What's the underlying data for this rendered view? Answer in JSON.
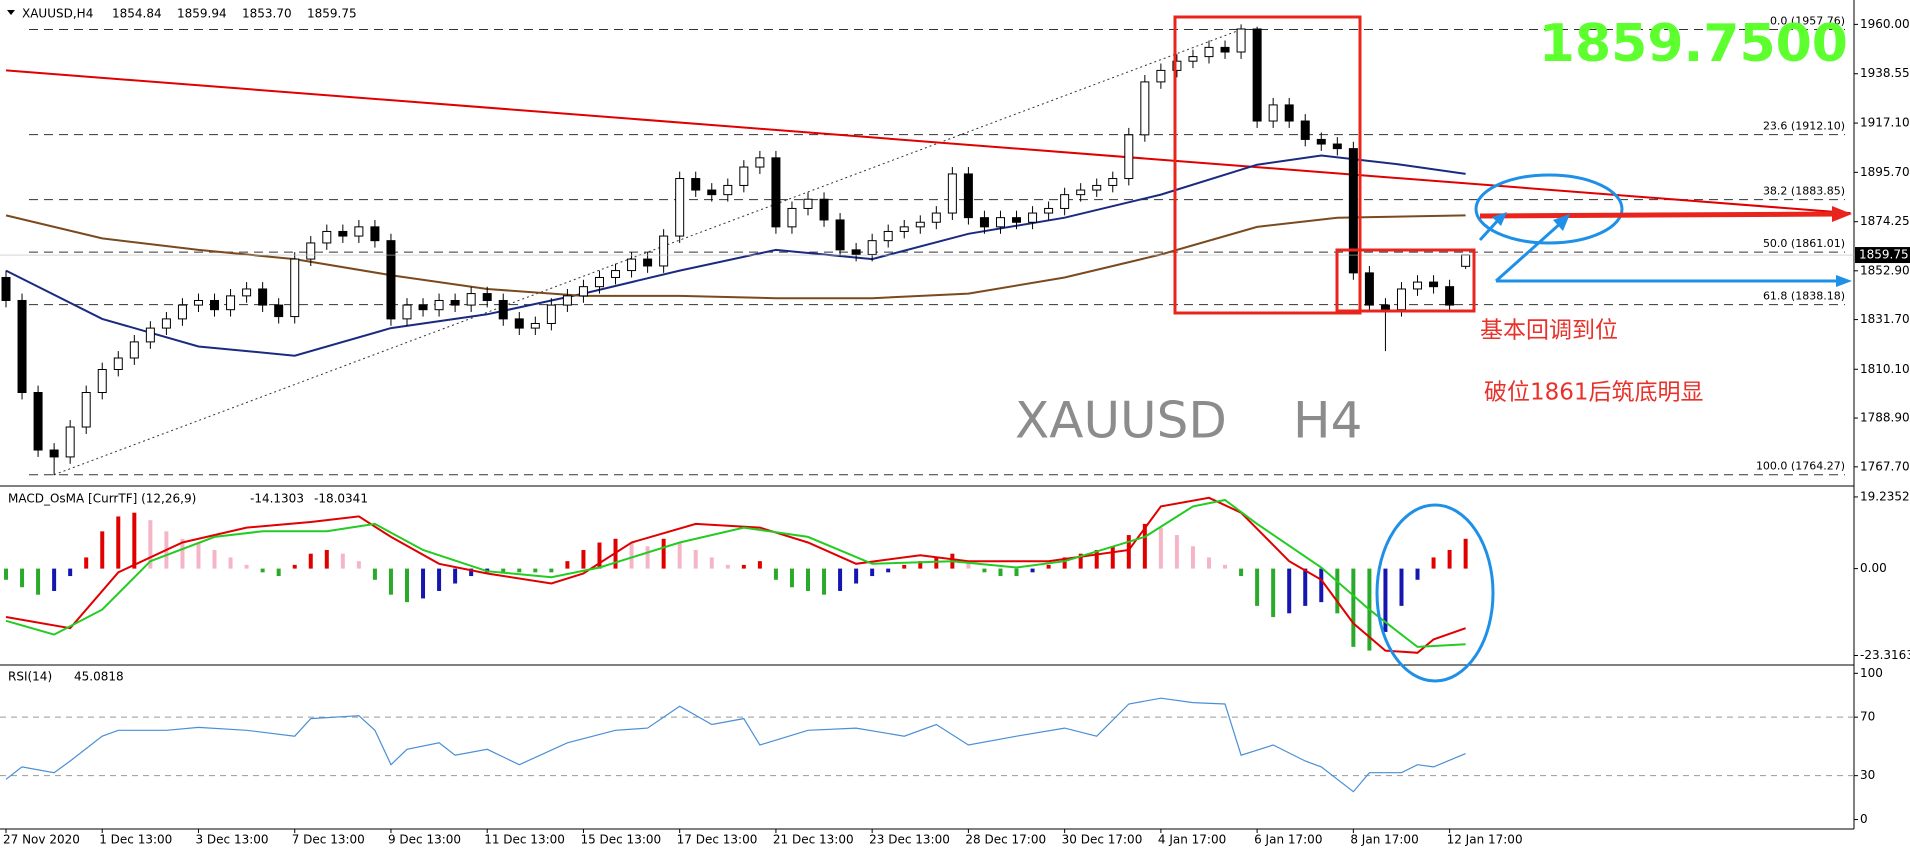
{
  "chart_data": [
    {
      "type": "candlestick",
      "title": "XAUUSD,H4",
      "last_bar": {
        "values": [
          1854.84,
          1859.94,
          1853.7,
          1859.75
        ],
        "value_labels": [
          "1854.84",
          "1859.94",
          "1853.70",
          "1859.75"
        ]
      },
      "big_price": "1859.7500",
      "watermark": [
        "XAUUSD",
        "H4"
      ],
      "annotations": [
        "基本回调到位",
        "破位1861后筑底明显"
      ],
      "categories": [
        "27 Nov 2020",
        null,
        null,
        null,
        null,
        null,
        "1 Dec 13:00",
        null,
        null,
        null,
        null,
        null,
        "3 Dec 13:00",
        null,
        null,
        null,
        null,
        null,
        "7 Dec 13:00",
        null,
        null,
        null,
        null,
        null,
        "9 Dec 13:00",
        null,
        null,
        null,
        null,
        null,
        "11 Dec 13:00",
        null,
        null,
        null,
        null,
        null,
        "15 Dec 13:00",
        null,
        null,
        null,
        null,
        null,
        "17 Dec 13:00",
        null,
        null,
        null,
        null,
        null,
        "21 Dec 13:00",
        null,
        null,
        null,
        null,
        null,
        "23 Dec 13:00",
        null,
        null,
        null,
        null,
        null,
        "28 Dec 17:00",
        null,
        null,
        null,
        null,
        null,
        "30 Dec 17:00",
        null,
        null,
        null,
        null,
        null,
        "4 Jan 17:00",
        null,
        null,
        null,
        null,
        null,
        "6 Jan 17:00",
        null,
        null,
        null,
        null,
        null,
        "8 Jan 17:00",
        null,
        null,
        null,
        null,
        null,
        "12 Jan 17:00",
        null
      ],
      "open": [
        1850,
        1840,
        1800,
        1775,
        1772,
        1785,
        1800,
        1810,
        1815,
        1822,
        1828,
        1832,
        1838,
        1840,
        1836,
        1842,
        1845,
        1838,
        1833,
        1858,
        1865,
        1870,
        1868,
        1872,
        1866,
        1832,
        1838,
        1836,
        1840,
        1838,
        1843,
        1840,
        1832,
        1828,
        1830,
        1838,
        1842,
        1846,
        1850,
        1853,
        1858,
        1855,
        1868,
        1893,
        1888,
        1886,
        1890,
        1898,
        1902,
        1872,
        1880,
        1884,
        1875,
        1862,
        1860,
        1866,
        1870,
        1872,
        1874,
        1878,
        1895,
        1876,
        1872,
        1876,
        1874,
        1878,
        1880,
        1886,
        1888,
        1890,
        1893,
        1912,
        1935,
        1940,
        1944,
        1946,
        1950,
        1948,
        1958,
        1918,
        1925,
        1918,
        1910,
        1908,
        1906,
        1852,
        1838,
        1836,
        1845,
        1848,
        1846,
        1854.84
      ],
      "high": [
        1853,
        1843,
        1803,
        1778,
        1788,
        1803,
        1813,
        1818,
        1825,
        1831,
        1835,
        1841,
        1843,
        1843,
        1845,
        1848,
        1848,
        1841,
        1861,
        1868,
        1873,
        1873,
        1875,
        1875,
        1869,
        1841,
        1841,
        1843,
        1843,
        1846,
        1846,
        1843,
        1835,
        1833,
        1841,
        1845,
        1849,
        1853,
        1856,
        1861,
        1861,
        1871,
        1896,
        1896,
        1891,
        1893,
        1901,
        1905,
        1905,
        1883,
        1887,
        1887,
        1878,
        1865,
        1869,
        1873,
        1875,
        1877,
        1881,
        1898,
        1898,
        1879,
        1879,
        1879,
        1881,
        1883,
        1889,
        1891,
        1893,
        1896,
        1915,
        1938,
        1943,
        1947,
        1949,
        1953,
        1953,
        1960,
        1959,
        1928,
        1928,
        1921,
        1913,
        1911,
        1909,
        1855,
        1841,
        1848,
        1851,
        1851,
        1849,
        1859.94
      ],
      "low": [
        1837,
        1797,
        1772,
        1764,
        1769,
        1782,
        1797,
        1807,
        1812,
        1819,
        1825,
        1829,
        1835,
        1833,
        1833,
        1839,
        1835,
        1830,
        1830,
        1855,
        1862,
        1865,
        1865,
        1863,
        1829,
        1829,
        1833,
        1833,
        1835,
        1835,
        1837,
        1829,
        1825,
        1825,
        1827,
        1835,
        1839,
        1843,
        1847,
        1850,
        1852,
        1852,
        1865,
        1885,
        1883,
        1883,
        1887,
        1895,
        1869,
        1869,
        1877,
        1872,
        1859,
        1857,
        1857,
        1863,
        1867,
        1869,
        1871,
        1875,
        1873,
        1869,
        1869,
        1871,
        1871,
        1875,
        1877,
        1883,
        1885,
        1887,
        1890,
        1909,
        1932,
        1937,
        1941,
        1943,
        1945,
        1945,
        1915,
        1915,
        1915,
        1907,
        1905,
        1903,
        1849,
        1835,
        1818,
        1833,
        1842,
        1843,
        1835,
        1853.7
      ],
      "close": [
        1840,
        1800,
        1775,
        1772,
        1785,
        1800,
        1810,
        1815,
        1822,
        1828,
        1832,
        1838,
        1840,
        1836,
        1842,
        1845,
        1838,
        1833,
        1858,
        1865,
        1870,
        1868,
        1872,
        1866,
        1832,
        1838,
        1836,
        1840,
        1838,
        1843,
        1840,
        1832,
        1828,
        1830,
        1838,
        1842,
        1846,
        1850,
        1853,
        1858,
        1855,
        1868,
        1893,
        1888,
        1886,
        1890,
        1898,
        1902,
        1872,
        1880,
        1884,
        1875,
        1862,
        1860,
        1866,
        1870,
        1872,
        1874,
        1878,
        1895,
        1876,
        1872,
        1876,
        1874,
        1878,
        1880,
        1886,
        1888,
        1890,
        1893,
        1912,
        1935,
        1940,
        1944,
        1946,
        1950,
        1948,
        1958,
        1918,
        1925,
        1918,
        1910,
        1908,
        1906,
        1852,
        1838,
        1836,
        1845,
        1848,
        1846,
        1838,
        1859.75
      ],
      "colors": {
        "up": "#ffffff",
        "down": "#000000",
        "outline": "#000000"
      },
      "moving_averages": [
        {
          "color": "#1a2a80",
          "x": [
            0,
            6,
            12,
            18,
            24,
            30,
            36,
            42,
            48,
            54,
            60,
            66,
            72,
            78,
            82,
            87,
            91
          ],
          "values": [
            1853,
            1832,
            1820,
            1816,
            1828,
            1834,
            1843,
            1853,
            1862,
            1858,
            1869,
            1876,
            1886,
            1899,
            1903,
            1899,
            1895
          ]
        },
        {
          "color": "#7a4a1e",
          "x": [
            0,
            6,
            12,
            18,
            24,
            30,
            36,
            42,
            48,
            54,
            60,
            66,
            72,
            78,
            83,
            91
          ],
          "values": [
            1877,
            1867,
            1862,
            1858,
            1851,
            1845,
            1842,
            1842,
            1841,
            1841,
            1843,
            1850,
            1860,
            1872,
            1876,
            1877
          ]
        }
      ],
      "trendline": {
        "color": "#e00000",
        "x": [
          0,
          115
        ],
        "values": [
          1940,
          1878
        ]
      },
      "fib_levels": [
        {
          "value": 1957.76,
          "label": "0.0 (1957.76)"
        },
        {
          "value": 1912.1,
          "label": "23.6 (1912.10)"
        },
        {
          "value": 1883.85,
          "label": "38.2 (1883.85)"
        },
        {
          "value": 1861.01,
          "label": "50.0 (1861.01)"
        },
        {
          "value": 1838.18,
          "label": "61.8 (1838.18)"
        },
        {
          "value": 1764.27,
          "label": "100.0 (1764.27)"
        }
      ],
      "ylim": [
        1759.8,
        1970.6
      ],
      "yticks": [
        {
          "value": 1960,
          "label": "1960.00"
        },
        {
          "value": 1938.55,
          "label": "1938.55"
        },
        {
          "value": 1917.1,
          "label": "1917.10"
        },
        {
          "value": 1895.7,
          "label": "1895.70"
        },
        {
          "value": 1874.25,
          "label": "1874.25"
        },
        {
          "value": 1852.9,
          "label": "1852.90"
        },
        {
          "value": 1831.7,
          "label": "1831.70"
        },
        {
          "value": 1810.1,
          "label": "1810.10"
        },
        {
          "value": 1788.9,
          "label": "1788.90"
        },
        {
          "value": 1767.7,
          "label": "1767.70"
        }
      ]
    },
    {
      "type": "macd",
      "title": "MACD_OsMA [CurrTF] (12,26,9)",
      "readouts": [
        -14.1303,
        -18.0341
      ],
      "histogram": [
        -3,
        -5,
        -7,
        -6,
        -2,
        3,
        10,
        14,
        15,
        13,
        10,
        8,
        7,
        5,
        3,
        1,
        -1,
        -2,
        1,
        4,
        5,
        4,
        2,
        -3,
        -7,
        -9,
        -8,
        -6,
        -4,
        -2,
        -1,
        -1,
        -1,
        -1,
        -1,
        2,
        5,
        7,
        8,
        7,
        6,
        8,
        7,
        5,
        3,
        1,
        1,
        2,
        -3,
        -5,
        -6,
        -7,
        -6,
        -4,
        -2,
        -1,
        1,
        2,
        3,
        4,
        2,
        -1,
        -2,
        -2,
        -1,
        1,
        3,
        4,
        5,
        6,
        9,
        12,
        11,
        9,
        6,
        3,
        1,
        -2,
        -10,
        -13,
        -12,
        -10,
        -9,
        -12,
        -21,
        -22,
        -17,
        -10,
        -3,
        3,
        5,
        8
      ],
      "colors": {
        "rising_positive": "#e00000",
        "falling_positive": "#f4b6c6",
        "falling_negative": "#2aaa2a",
        "rising_negative": "#1515b0"
      },
      "lines": [
        {
          "color": "#e00000",
          "x": [
            0,
            4,
            7,
            11,
            15,
            19,
            22,
            24,
            27,
            30,
            34,
            36,
            39,
            43,
            47,
            50,
            53,
            57,
            60,
            65,
            70,
            72,
            75,
            77,
            80,
            82,
            84,
            86,
            88,
            89,
            91
          ],
          "values": [
            -13,
            -16,
            -1,
            7,
            11,
            12.5,
            14,
            8.5,
            1.3,
            -1.3,
            -4,
            -1.3,
            7,
            12,
            11,
            7,
            1.3,
            3.6,
            2,
            2,
            5,
            16.7,
            19,
            15,
            2,
            -3,
            -14.7,
            -22,
            -22.6,
            -19,
            -16
          ]
        },
        {
          "color": "#22cc22",
          "x": [
            0,
            3,
            6,
            9,
            13,
            16,
            20,
            23,
            26,
            30,
            34,
            37,
            42,
            46,
            50,
            54,
            59,
            63,
            66,
            71,
            74,
            76,
            78,
            82,
            85,
            87,
            88,
            91
          ],
          "values": [
            -14,
            -17.7,
            -11,
            2,
            8.5,
            10,
            10,
            12,
            5,
            -0.7,
            -2.3,
            0.3,
            7,
            11,
            8.5,
            1.3,
            2,
            0.3,
            2,
            8.5,
            16.7,
            18.4,
            12,
            0.3,
            -11,
            -17.7,
            -21,
            -20.3
          ]
        }
      ],
      "ylim": [
        -25.6,
        21.9
      ],
      "yticks": [
        19.2352,
        {
          "value": 0,
          "label": "0.00"
        },
        -23.3163
      ]
    },
    {
      "type": "line",
      "title": "RSI(14)",
      "readout": 45.0818,
      "color": "#4a8fd6",
      "x": [
        0,
        1,
        3,
        4,
        6,
        7,
        10,
        12,
        15,
        18,
        19,
        22,
        23,
        24,
        25,
        27,
        28,
        30,
        32,
        35,
        38,
        40,
        42,
        44,
        46,
        47,
        50,
        53,
        56,
        58,
        60,
        63,
        66,
        68,
        70,
        72,
        74,
        76,
        77,
        79,
        81,
        82,
        84,
        85,
        87,
        88,
        89,
        91
      ],
      "values": [
        27.5,
        36,
        32,
        40,
        57,
        61,
        61,
        63,
        61,
        57,
        69,
        71,
        61,
        37.5,
        48,
        52.5,
        44,
        48,
        37.5,
        52.5,
        61,
        62.5,
        77.5,
        65,
        69,
        51,
        61,
        62.5,
        57,
        65,
        51,
        57,
        62.5,
        57,
        79,
        83,
        80,
        79,
        44,
        51,
        40,
        36,
        19,
        32,
        32,
        37.5,
        36,
        45.0818
      ],
      "levels": [
        70,
        30
      ],
      "ylim": [
        -5.8,
        105
      ],
      "yticks": [
        100,
        70,
        30,
        0
      ]
    }
  ]
}
